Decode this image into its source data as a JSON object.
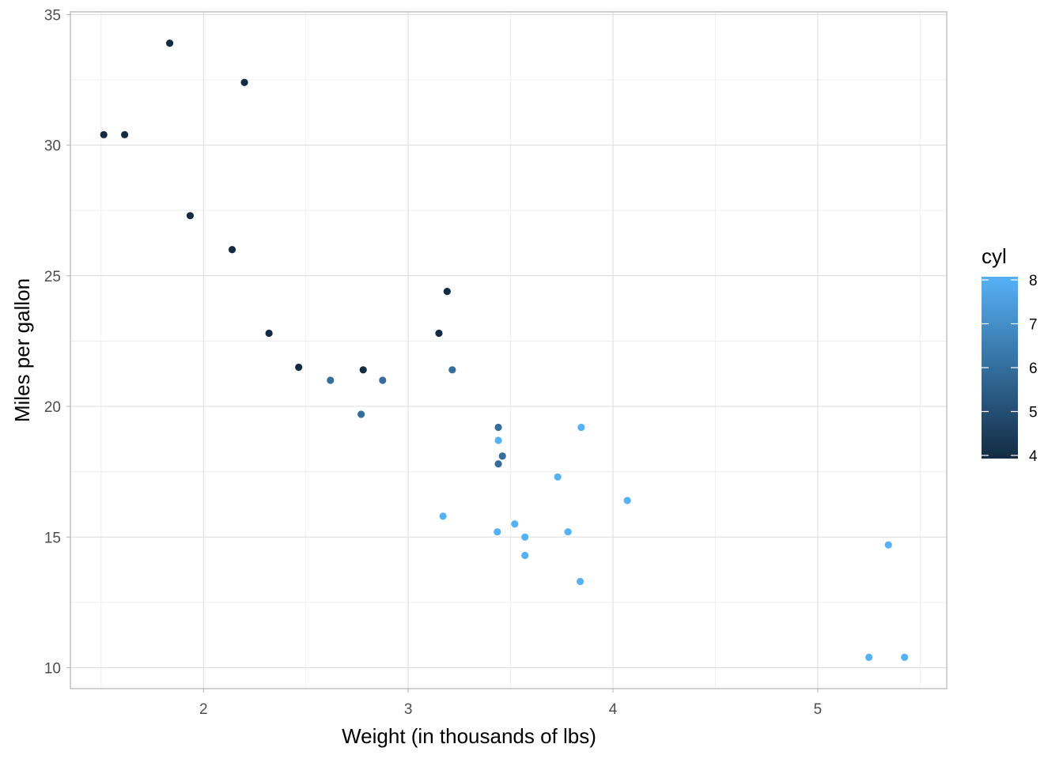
{
  "chart_data": {
    "type": "scatter",
    "title": "",
    "xlabel": "Weight (in thousands of lbs)",
    "ylabel": "Miles per gallon",
    "xlim": [
      1.35,
      5.63
    ],
    "ylim": [
      9.2,
      35.1
    ],
    "xticks": [
      2,
      3,
      4,
      5
    ],
    "yticks": [
      10,
      15,
      20,
      25,
      30,
      35
    ],
    "grid": true,
    "legend": {
      "title": "cyl",
      "placement": "right",
      "min": 4,
      "max": 8,
      "ticks": [
        4,
        5,
        6,
        7,
        8
      ],
      "color_low": "#132B43",
      "color_high": "#56B1F7"
    },
    "points": [
      {
        "x": 2.62,
        "y": 21.0,
        "cyl": 6
      },
      {
        "x": 2.875,
        "y": 21.0,
        "cyl": 6
      },
      {
        "x": 2.32,
        "y": 22.8,
        "cyl": 4
      },
      {
        "x": 3.215,
        "y": 21.4,
        "cyl": 6
      },
      {
        "x": 3.44,
        "y": 18.7,
        "cyl": 8
      },
      {
        "x": 3.46,
        "y": 18.1,
        "cyl": 6
      },
      {
        "x": 3.57,
        "y": 14.3,
        "cyl": 8
      },
      {
        "x": 3.19,
        "y": 24.4,
        "cyl": 4
      },
      {
        "x": 3.15,
        "y": 22.8,
        "cyl": 4
      },
      {
        "x": 3.44,
        "y": 19.2,
        "cyl": 6
      },
      {
        "x": 3.44,
        "y": 17.8,
        "cyl": 6
      },
      {
        "x": 4.07,
        "y": 16.4,
        "cyl": 8
      },
      {
        "x": 3.73,
        "y": 17.3,
        "cyl": 8
      },
      {
        "x": 3.78,
        "y": 15.2,
        "cyl": 8
      },
      {
        "x": 5.25,
        "y": 10.4,
        "cyl": 8
      },
      {
        "x": 5.424,
        "y": 10.4,
        "cyl": 8
      },
      {
        "x": 5.345,
        "y": 14.7,
        "cyl": 8
      },
      {
        "x": 2.2,
        "y": 32.4,
        "cyl": 4
      },
      {
        "x": 1.615,
        "y": 30.4,
        "cyl": 4
      },
      {
        "x": 1.835,
        "y": 33.9,
        "cyl": 4
      },
      {
        "x": 2.465,
        "y": 21.5,
        "cyl": 4
      },
      {
        "x": 3.52,
        "y": 15.5,
        "cyl": 8
      },
      {
        "x": 3.435,
        "y": 15.2,
        "cyl": 8
      },
      {
        "x": 3.84,
        "y": 13.3,
        "cyl": 8
      },
      {
        "x": 3.845,
        "y": 19.2,
        "cyl": 8
      },
      {
        "x": 1.935,
        "y": 27.3,
        "cyl": 4
      },
      {
        "x": 2.14,
        "y": 26.0,
        "cyl": 4
      },
      {
        "x": 1.513,
        "y": 30.4,
        "cyl": 4
      },
      {
        "x": 3.17,
        "y": 15.8,
        "cyl": 8
      },
      {
        "x": 2.77,
        "y": 19.7,
        "cyl": 6
      },
      {
        "x": 3.57,
        "y": 15.0,
        "cyl": 8
      },
      {
        "x": 2.78,
        "y": 21.4,
        "cyl": 4
      }
    ]
  }
}
